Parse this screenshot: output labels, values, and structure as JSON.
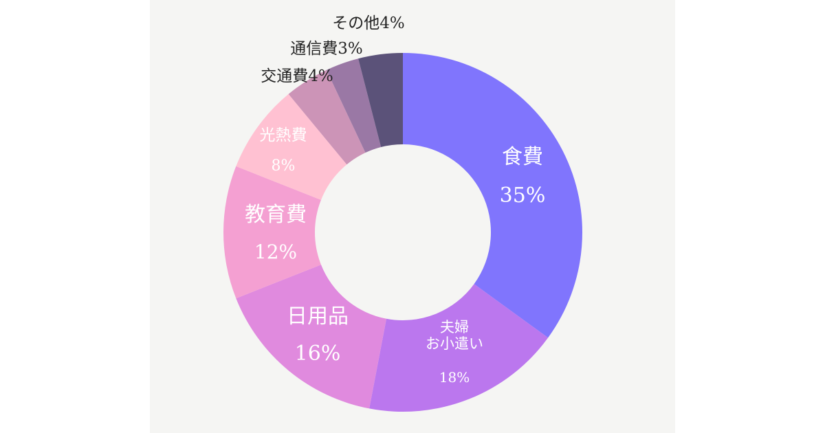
{
  "chart_data": {
    "type": "pie",
    "donut": true,
    "slices": [
      {
        "label": [
          "食費"
        ],
        "pct_text": "35%",
        "value": 35,
        "color": "#8075fd",
        "label_mode": "inside",
        "text_color": "#ffffff"
      },
      {
        "label": [
          "夫婦",
          "お小遣い"
        ],
        "pct_text": "18%",
        "value": 18,
        "color": "#bb77ee",
        "label_mode": "inside",
        "text_color": "#ffffff"
      },
      {
        "label": [
          "日用品"
        ],
        "pct_text": "16%",
        "value": 16,
        "color": "#e08ade",
        "label_mode": "inside",
        "text_color": "#ffffff"
      },
      {
        "label": [
          "教育費"
        ],
        "pct_text": "12%",
        "value": 12,
        "color": "#f4a0d2",
        "label_mode": "inside",
        "text_color": "#ffffff"
      },
      {
        "label": [
          "光熱費"
        ],
        "pct_text": "8%",
        "value": 8,
        "color": "#ffc1d2",
        "label_mode": "inside",
        "text_color": "#ffffff"
      },
      {
        "label": [
          "交通費"
        ],
        "pct_text": "4%",
        "value": 4,
        "color": "#cc94b7",
        "label_mode": "outside",
        "text_color": "#222222"
      },
      {
        "label": [
          "通信費"
        ],
        "pct_text": "3%",
        "value": 3,
        "color": "#9a78a5",
        "label_mode": "outside",
        "text_color": "#222222"
      },
      {
        "label": [
          "その他"
        ],
        "pct_text": "4%",
        "value": 4,
        "color": "#5b5279",
        "label_mode": "outside",
        "text_color": "#222222"
      }
    ]
  }
}
